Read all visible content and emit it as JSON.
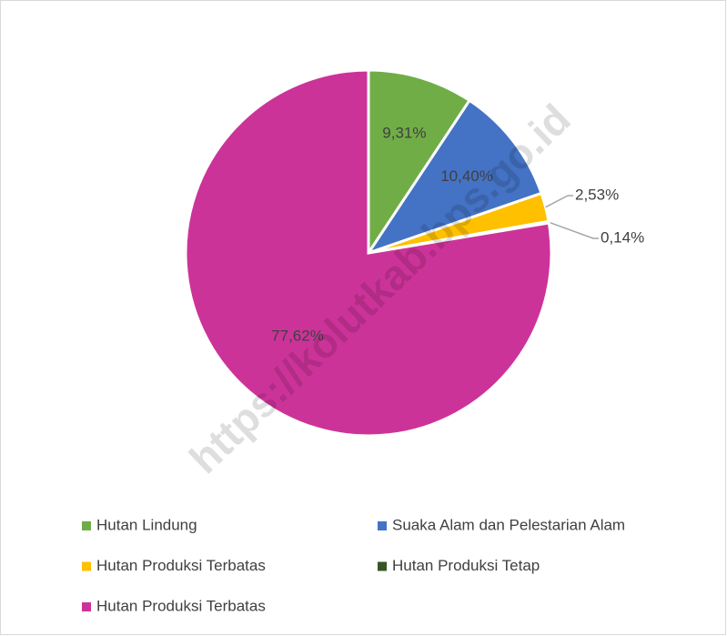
{
  "chart_data": {
    "type": "pie",
    "categories": [
      "Hutan Lindung",
      "Suaka Alam dan Pelestarian Alam",
      "Hutan Produksi Terbatas",
      "Hutan Produksi Tetap",
      "Hutan Produksi Terbatas"
    ],
    "values": [
      9.31,
      10.4,
      2.53,
      0.14,
      77.62
    ],
    "value_labels": [
      "9,31%",
      "10,40%",
      "2,53%",
      "0,14%",
      "77,62%"
    ],
    "colors": [
      "#70ad47",
      "#4472c4",
      "#ffc000",
      "#375623",
      "#cc3399"
    ],
    "legend": "bottom"
  },
  "watermark": "https://kolutkab.bps.go.id"
}
